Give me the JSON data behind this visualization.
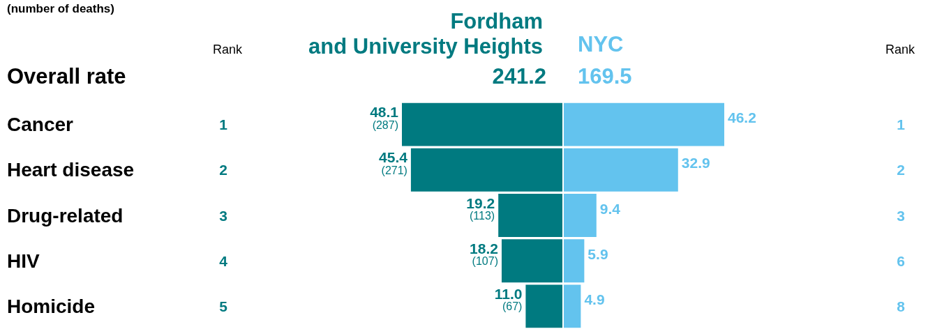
{
  "chart_data": [
    {
      "type": "bar",
      "orientation": "horizontal",
      "subtitle": "(number of deaths)",
      "categories": [
        "Cancer",
        "Heart disease",
        "Drug-related",
        "HIV",
        "Homicide"
      ],
      "series": [
        {
          "name": "Fordham and University Heights",
          "color": "#007a80",
          "values": [
            48.1,
            45.4,
            19.2,
            18.2,
            11.0
          ],
          "value_labels": [
            "48.1\n(287)",
            "45.4\n(271)",
            "19.2\n(113)",
            "18.2\n(107)",
            "11.0\n(67)"
          ]
        }
      ],
      "annotations": [
        "Rank",
        "Overall rate",
        "241.2",
        "1",
        "2",
        "3",
        "4",
        "5"
      ],
      "legend": false
    },
    {
      "type": "bar",
      "orientation": "horizontal",
      "categories": [
        null,
        null,
        null,
        null,
        null
      ],
      "series": [
        {
          "name": "NYC",
          "color": "#63c3ee",
          "values": [
            46.2,
            32.9,
            9.4,
            5.9,
            4.9
          ],
          "value_labels": [
            "46.2",
            "32.9",
            "9.4",
            "5.9",
            "4.9"
          ]
        }
      ],
      "annotations": [
        "Rank",
        "169.5",
        "1",
        "2",
        "3",
        "6",
        "8"
      ],
      "legend": false
    }
  ]
}
